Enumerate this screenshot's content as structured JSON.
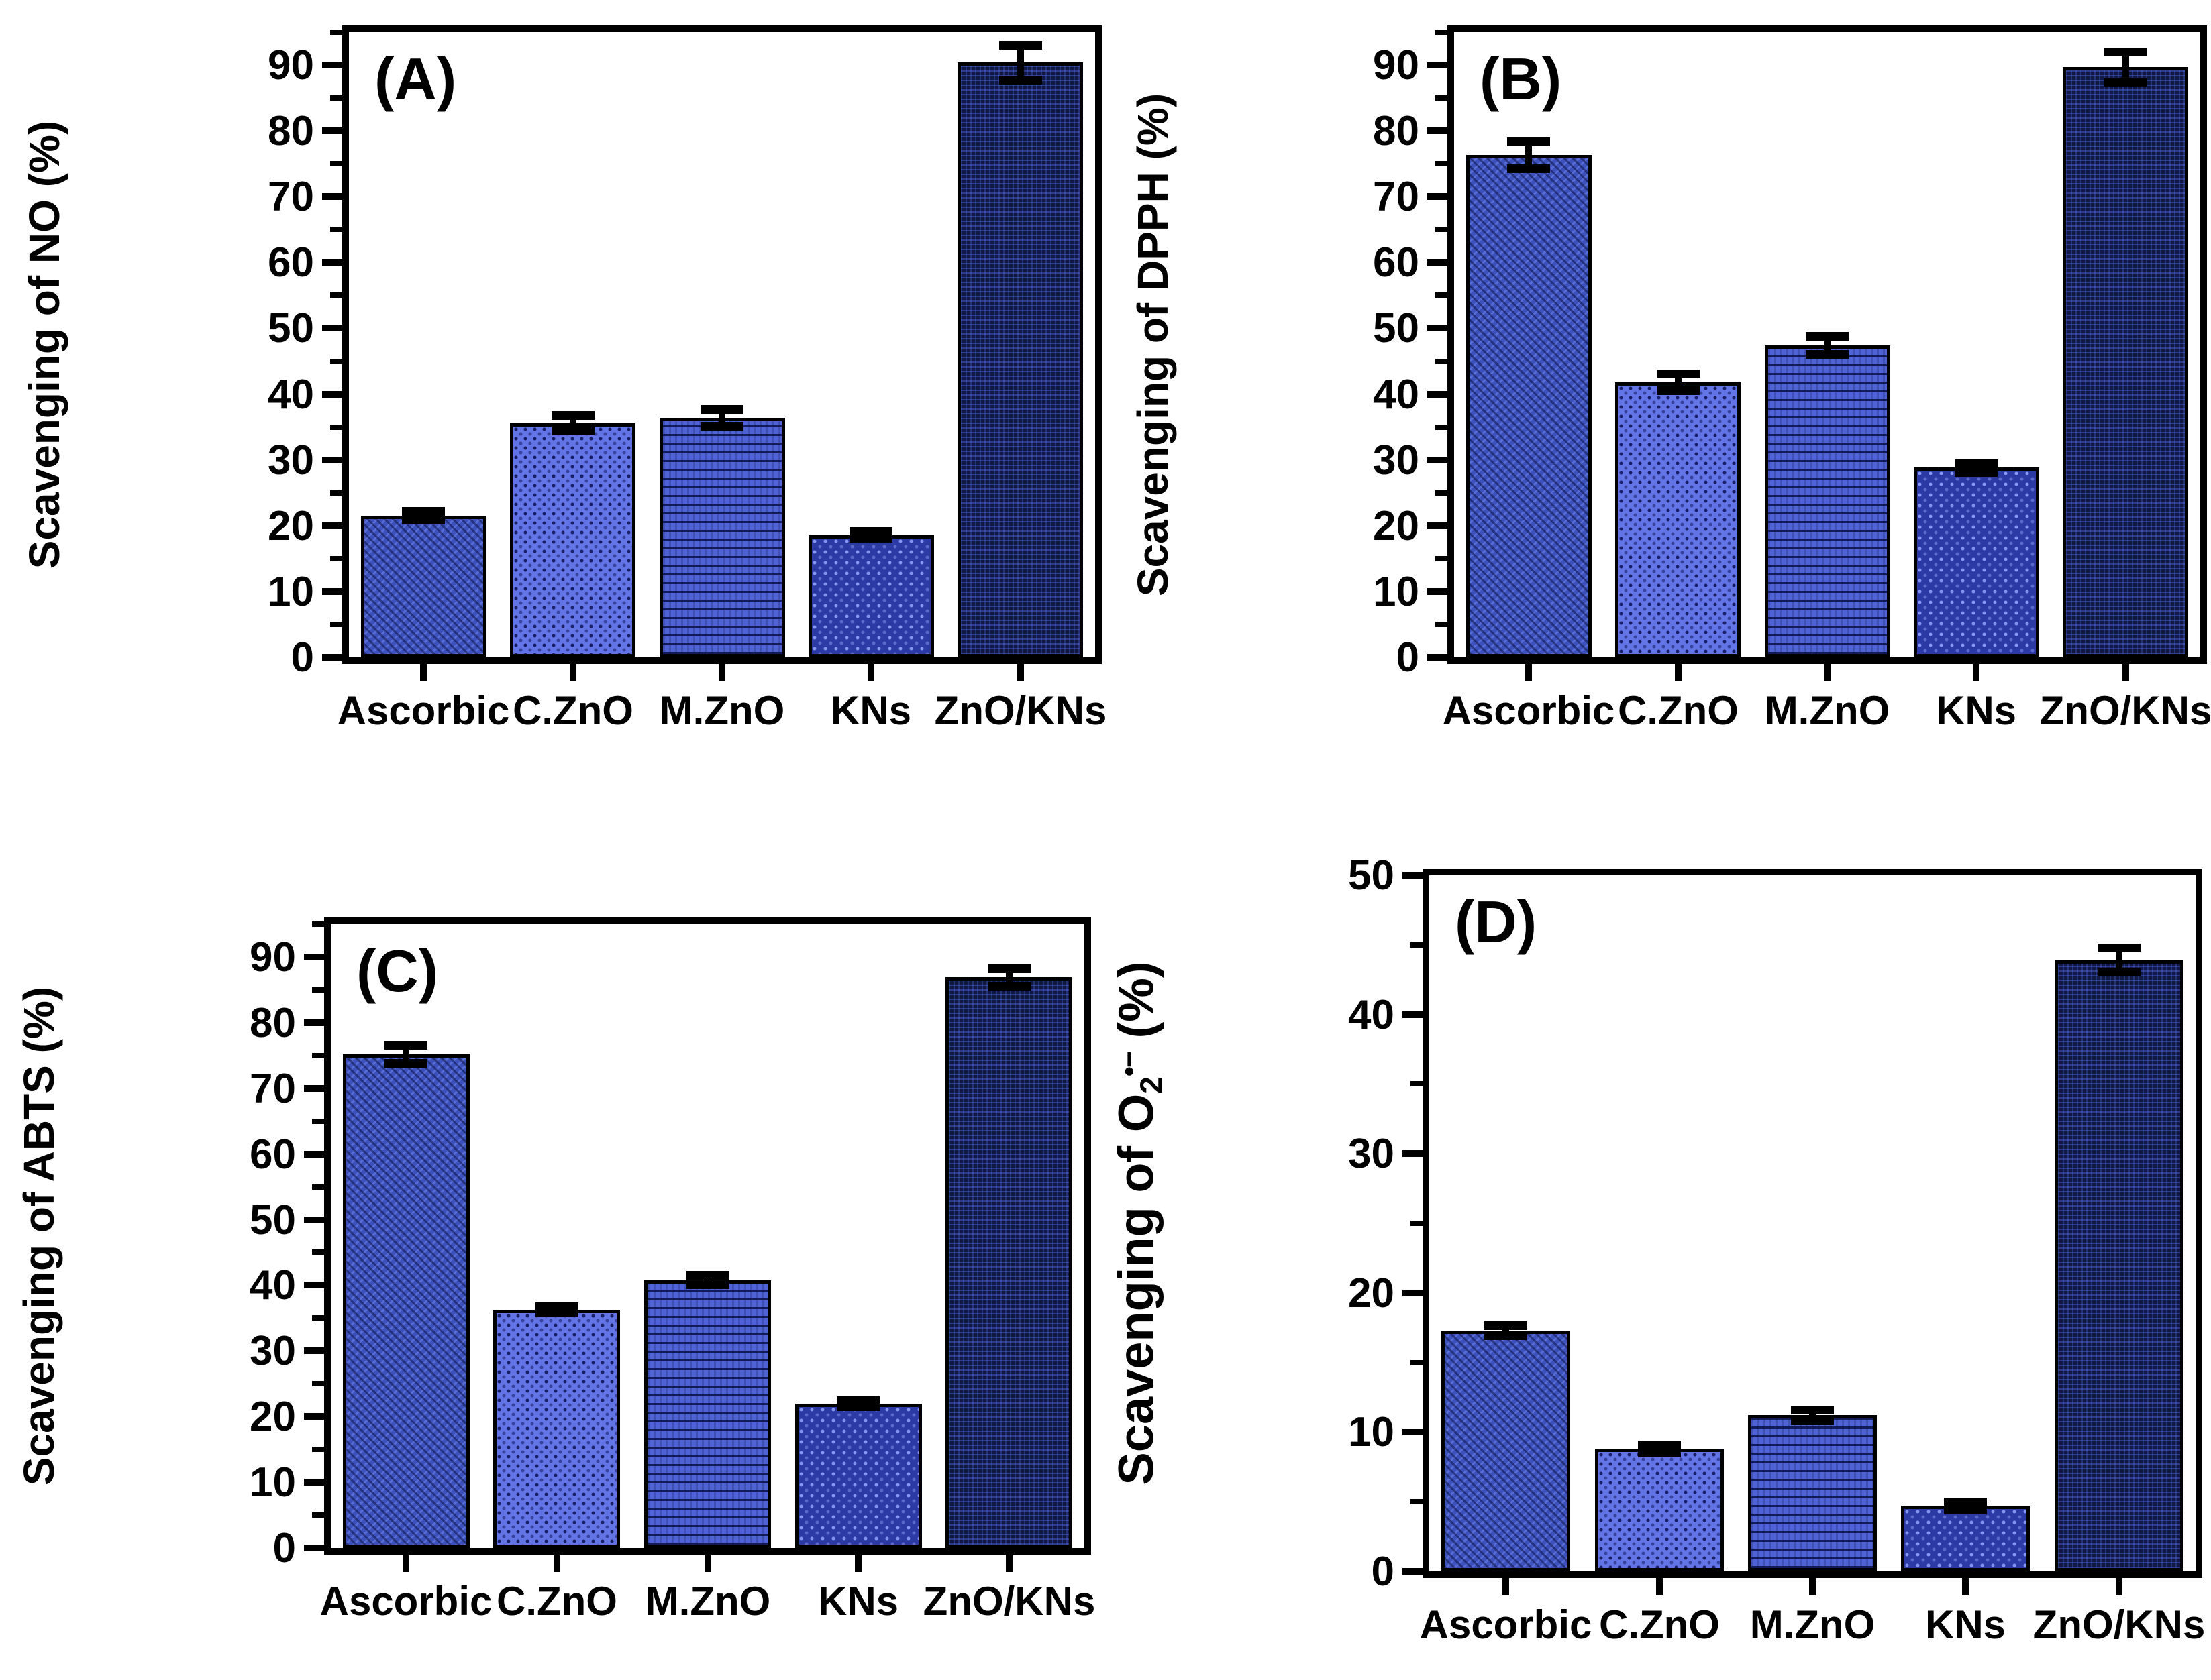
{
  "figure": {
    "background": "#ffffff",
    "axis_color": "#000000",
    "categories": [
      "Ascorbic",
      "C.ZnO",
      "M.ZnO",
      "KNs",
      "ZnO/KNs"
    ],
    "bar_styles": [
      {
        "category": "Ascorbic",
        "fill": "#3d51bd",
        "pattern": "fine-checker"
      },
      {
        "category": "C.ZnO",
        "fill": "#6375e6",
        "pattern": "dark-dots"
      },
      {
        "category": "M.ZnO",
        "fill": "#4f62d6",
        "pattern": "wavy-lines"
      },
      {
        "category": "KNs",
        "fill": "#2b3aa4",
        "pattern": "light-dots"
      },
      {
        "category": "ZnO/KNs",
        "fill": "#101843",
        "pattern": "fine-grid"
      }
    ]
  },
  "chart_data": [
    {
      "id": "A",
      "type": "bar",
      "panel_label": "(A)",
      "ylabel_segments": [
        {
          "text": "Scavenging of NO  (%)"
        }
      ],
      "categories": [
        "Ascorbic",
        "C.ZnO",
        "M.ZnO",
        "KNs",
        "ZnO/KNs"
      ],
      "values": [
        21.5,
        35.6,
        36.4,
        18.6,
        90.4
      ],
      "errors": [
        0.7,
        1.2,
        1.3,
        0.6,
        2.7
      ],
      "ylim": [
        0,
        95
      ],
      "yticks": [
        0,
        10,
        20,
        30,
        40,
        50,
        60,
        70,
        80,
        90
      ],
      "ytick_step": 10,
      "minor_step": 5,
      "grid": false,
      "legend": "none"
    },
    {
      "id": "B",
      "type": "bar",
      "panel_label": "(B)",
      "ylabel_segments": [
        {
          "text": "Scavenging of DPPH (%)"
        }
      ],
      "categories": [
        "Ascorbic",
        "C.ZnO",
        "M.ZnO",
        "KNs",
        "ZnO/KNs"
      ],
      "values": [
        76.3,
        41.8,
        47.4,
        28.8,
        89.7
      ],
      "errors": [
        2.1,
        1.3,
        1.4,
        0.8,
        2.3
      ],
      "ylim": [
        0,
        95
      ],
      "yticks": [
        0,
        10,
        20,
        30,
        40,
        50,
        60,
        70,
        80,
        90
      ],
      "ytick_step": 10,
      "minor_step": 5,
      "grid": false,
      "legend": "none"
    },
    {
      "id": "C",
      "type": "bar",
      "panel_label": "(C)",
      "ylabel_segments": [
        {
          "text": "Scavenging of ABTS (%)"
        }
      ],
      "categories": [
        "Ascorbic",
        "C.ZnO",
        "M.ZnO",
        "KNs",
        "ZnO/KNs"
      ],
      "values": [
        75.2,
        36.3,
        40.8,
        22.0,
        86.9
      ],
      "errors": [
        1.4,
        0.5,
        0.8,
        0.5,
        1.4
      ],
      "ylim": [
        0,
        95
      ],
      "yticks": [
        0,
        10,
        20,
        30,
        40,
        50,
        60,
        70,
        80,
        90
      ],
      "ytick_step": 10,
      "minor_step": 5,
      "grid": false,
      "legend": "none"
    },
    {
      "id": "D",
      "type": "bar",
      "panel_label": "(D)",
      "ylabel_segments": [
        {
          "text": "Scavenging of O"
        },
        {
          "text": "2",
          "sub": true
        },
        {
          "text": "•−",
          "sup": true
        },
        {
          "text": "  (%)"
        }
      ],
      "categories": [
        "Ascorbic",
        "C.ZnO",
        "M.ZnO",
        "KNs",
        "ZnO/KNs"
      ],
      "values": [
        17.3,
        8.8,
        11.2,
        4.7,
        43.9
      ],
      "errors": [
        0.4,
        0.3,
        0.4,
        0.3,
        0.9
      ],
      "ylim": [
        0,
        50
      ],
      "yticks": [
        0,
        10,
        20,
        30,
        40,
        50
      ],
      "ytick_step": 10,
      "minor_step": 5,
      "grid": false,
      "legend": "none"
    }
  ]
}
